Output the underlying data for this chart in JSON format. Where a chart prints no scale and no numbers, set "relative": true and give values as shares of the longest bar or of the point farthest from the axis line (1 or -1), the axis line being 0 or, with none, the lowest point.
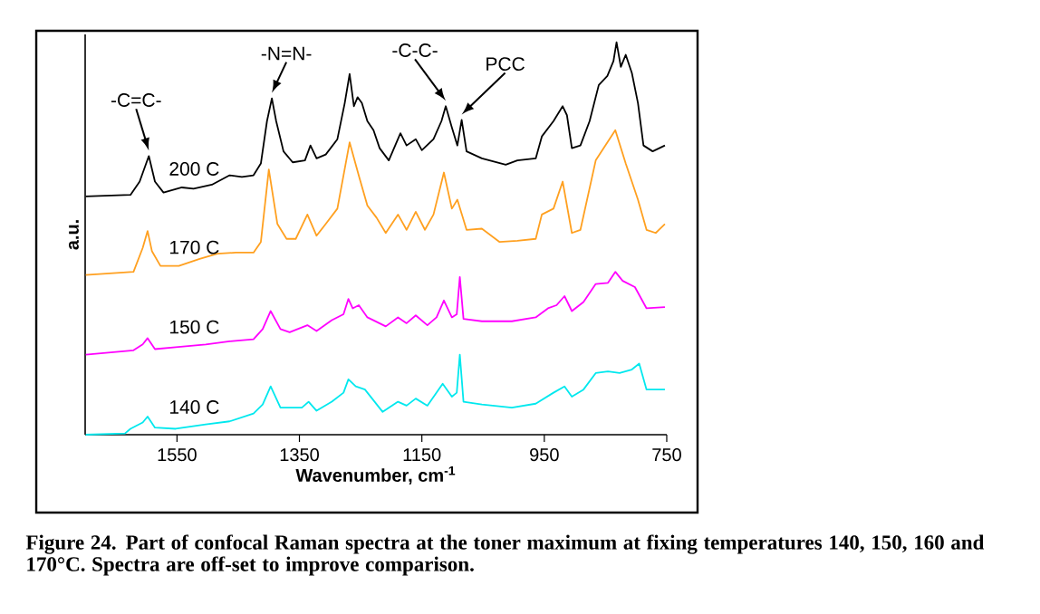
{
  "chart_data": {
    "type": "line",
    "xlabel": "Wavenumber, cm$^{-1}$",
    "ylabel": "a.u.",
    "relative": true,
    "xlim": [
      1700,
      750
    ],
    "xticks": [
      1550,
      1350,
      1150,
      950,
      750
    ],
    "grid": false,
    "legend": false,
    "marker": "none",
    "line_style": "solid",
    "annotations": [
      {
        "text": "-C=C-",
        "x": 1596,
        "y": 0.71
      },
      {
        "text": "-N=N-",
        "x": 1395,
        "y": 0.857
      },
      {
        "text": "-C-C-",
        "x": 1111,
        "y": 0.837
      },
      {
        "text": "PCC",
        "x": 1085,
        "y": 0.802
      },
      "Figure 24. Part of confocal Raman spectra at the toner maximum at fixing temperatures 140, 150, 160 and 170°C. Spectra are off-set to improve comparison."
    ],
    "series": [
      {
        "name": "200 C",
        "color": "#000000",
        "x": [
          1699,
          1626,
          1611,
          1596,
          1586,
          1572,
          1542,
          1523,
          1493,
          1464,
          1444,
          1425,
          1413,
          1403,
          1395,
          1388,
          1376,
          1361,
          1341,
          1332,
          1322,
          1307,
          1288,
          1276,
          1268,
          1261,
          1255,
          1248,
          1239,
          1229,
          1219,
          1204,
          1185,
          1175,
          1160,
          1150,
          1131,
          1118,
          1111,
          1101,
          1092,
          1085,
          1077,
          1052,
          1013,
          994,
          964,
          954,
          935,
          920,
          913,
          905,
          891,
          876,
          861,
          847,
          837,
          832,
          825,
          817,
          807,
          797,
          788,
          773,
          753
        ],
        "values": [
          0.607,
          0.611,
          0.645,
          0.71,
          0.645,
          0.617,
          0.63,
          0.627,
          0.637,
          0.661,
          0.657,
          0.661,
          0.691,
          0.799,
          0.857,
          0.799,
          0.722,
          0.694,
          0.699,
          0.737,
          0.704,
          0.714,
          0.753,
          0.845,
          0.919,
          0.837,
          0.86,
          0.845,
          0.799,
          0.776,
          0.73,
          0.699,
          0.768,
          0.737,
          0.753,
          0.725,
          0.753,
          0.799,
          0.837,
          0.783,
          0.737,
          0.802,
          0.722,
          0.704,
          0.688,
          0.699,
          0.704,
          0.76,
          0.799,
          0.837,
          0.814,
          0.73,
          0.737,
          0.799,
          0.891,
          0.914,
          0.952,
          1.0,
          0.937,
          0.968,
          0.922,
          0.845,
          0.737,
          0.722,
          0.737
        ]
      },
      {
        "name": "170 C",
        "color": "#ffa020",
        "x": [
          1699,
          1621,
          1606,
          1598,
          1591,
          1577,
          1547,
          1513,
          1484,
          1454,
          1425,
          1413,
          1400,
          1386,
          1371,
          1356,
          1337,
          1322,
          1307,
          1288,
          1268,
          1253,
          1239,
          1224,
          1209,
          1189,
          1175,
          1160,
          1145,
          1131,
          1114,
          1101,
          1092,
          1077,
          1052,
          1023,
          994,
          964,
          954,
          935,
          920,
          905,
          891,
          866,
          834,
          817,
          797,
          783,
          768,
          753
        ],
        "values": [
          0.407,
          0.415,
          0.476,
          0.519,
          0.468,
          0.43,
          0.43,
          0.448,
          0.461,
          0.464,
          0.464,
          0.491,
          0.676,
          0.537,
          0.499,
          0.499,
          0.561,
          0.507,
          0.537,
          0.576,
          0.745,
          0.66,
          0.584,
          0.553,
          0.514,
          0.561,
          0.522,
          0.568,
          0.522,
          0.561,
          0.668,
          0.576,
          0.599,
          0.522,
          0.525,
          0.491,
          0.494,
          0.499,
          0.561,
          0.576,
          0.645,
          0.514,
          0.522,
          0.699,
          0.776,
          0.691,
          0.599,
          0.522,
          0.514,
          0.537
        ]
      },
      {
        "name": "150 C",
        "color": "#ff00ff",
        "x": [
          1699,
          1621,
          1606,
          1598,
          1586,
          1552,
          1503,
          1464,
          1425,
          1410,
          1397,
          1381,
          1366,
          1337,
          1322,
          1297,
          1278,
          1270,
          1263,
          1253,
          1239,
          1209,
          1189,
          1175,
          1160,
          1141,
          1126,
          1114,
          1101,
          1093,
          1088,
          1082,
          1052,
          1003,
          964,
          944,
          930,
          917,
          905,
          886,
          866,
          846,
          834,
          822,
          802,
          783,
          753
        ],
        "values": [
          0.204,
          0.215,
          0.23,
          0.246,
          0.218,
          0.223,
          0.23,
          0.238,
          0.243,
          0.269,
          0.315,
          0.269,
          0.261,
          0.279,
          0.264,
          0.292,
          0.307,
          0.346,
          0.322,
          0.33,
          0.299,
          0.276,
          0.299,
          0.284,
          0.304,
          0.279,
          0.299,
          0.342,
          0.299,
          0.307,
          0.402,
          0.295,
          0.289,
          0.289,
          0.299,
          0.322,
          0.33,
          0.353,
          0.315,
          0.338,
          0.384,
          0.387,
          0.415,
          0.392,
          0.376,
          0.322,
          0.325
        ]
      },
      {
        "name": "140 C",
        "color": "#00e8ee",
        "x": [
          1699,
          1635,
          1626,
          1606,
          1598,
          1586,
          1552,
          1503,
          1464,
          1425,
          1410,
          1397,
          1381,
          1346,
          1335,
          1322,
          1297,
          1278,
          1270,
          1258,
          1243,
          1214,
          1189,
          1175,
          1160,
          1141,
          1116,
          1101,
          1093,
          1088,
          1082,
          1052,
          1003,
          964,
          935,
          917,
          905,
          886,
          866,
          846,
          827,
          807,
          795,
          783,
          753
        ],
        "values": [
          0.0,
          0.003,
          0.015,
          0.031,
          0.046,
          0.018,
          0.015,
          0.026,
          0.034,
          0.054,
          0.077,
          0.123,
          0.069,
          0.069,
          0.084,
          0.061,
          0.084,
          0.107,
          0.141,
          0.123,
          0.115,
          0.058,
          0.084,
          0.074,
          0.092,
          0.074,
          0.13,
          0.097,
          0.107,
          0.204,
          0.084,
          0.077,
          0.069,
          0.079,
          0.107,
          0.123,
          0.097,
          0.115,
          0.157,
          0.161,
          0.157,
          0.166,
          0.181,
          0.115,
          0.115
        ]
      }
    ]
  }
}
